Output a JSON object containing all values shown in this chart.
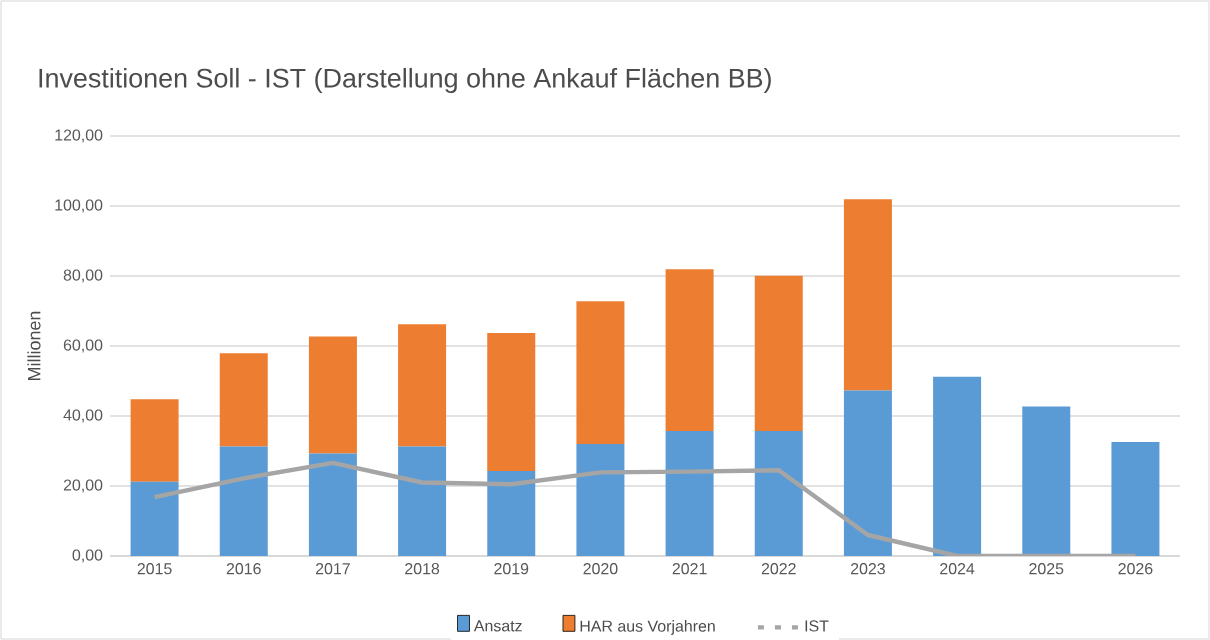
{
  "chart_data": {
    "type": "bar",
    "stacked": true,
    "title": "Investitionen Soll - IST (Darstellung ohne Ankauf Flächen BB)",
    "ylabel": "Millionen",
    "categories": [
      "2015",
      "2016",
      "2017",
      "2018",
      "2019",
      "2020",
      "2021",
      "2022",
      "2023",
      "2024",
      "2025",
      "2026"
    ],
    "series": [
      {
        "name": "Ansatz",
        "color": "#5b9bd5",
        "values": [
          21.2,
          31.3,
          29.3,
          31.3,
          24.3,
          32.0,
          35.7,
          35.7,
          47.3,
          51.2,
          42.7,
          32.6
        ]
      },
      {
        "name": "HAR aus Vorjahren",
        "color": "#ed7d31",
        "values": [
          23.6,
          26.6,
          33.4,
          34.9,
          39.4,
          40.8,
          46.2,
          44.4,
          54.6,
          null,
          null,
          null
        ]
      },
      {
        "name": "IST",
        "type": "line",
        "color": "#a5a5a5",
        "values": [
          16.8,
          22.2,
          26.6,
          21.0,
          20.5,
          23.9,
          24.1,
          24.5,
          6.0,
          0,
          0,
          0
        ]
      }
    ],
    "ylim": [
      0,
      120
    ],
    "yticks": [
      {
        "value": 0,
        "label": "0,00"
      },
      {
        "value": 20,
        "label": "20,00"
      },
      {
        "value": 40,
        "label": "40,00"
      },
      {
        "value": 60,
        "label": "60,00"
      },
      {
        "value": 80,
        "label": "80,00"
      },
      {
        "value": 100,
        "label": "100,00"
      },
      {
        "value": 120,
        "label": "120,00"
      }
    ],
    "grid": "y",
    "legend": "bottom",
    "marker": "none"
  }
}
